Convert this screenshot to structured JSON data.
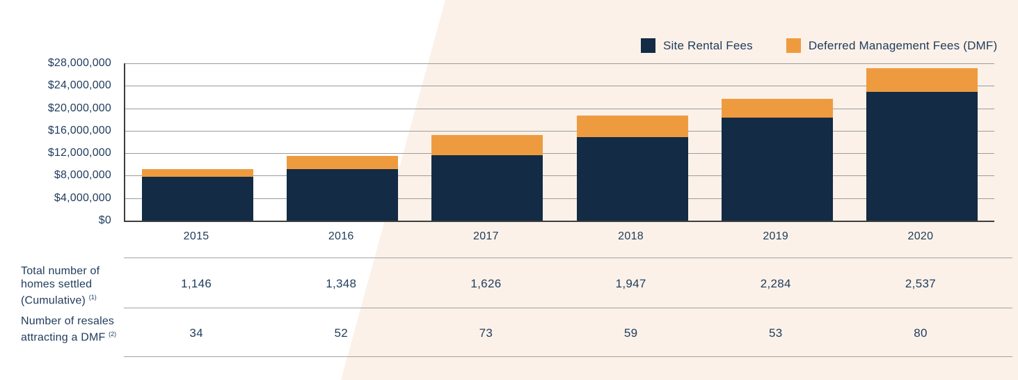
{
  "colors": {
    "text_navy": "#1E3B5C",
    "site_rental_navy": "#132B44",
    "dmf_orange": "#EE9B3F",
    "gridline_gray": "#9B9B9B",
    "axis_dark": "#3D3D3D",
    "divider_gray": "#A3A3A3",
    "background_cream": "#FBF1E8",
    "background_white": "#FFFFFF"
  },
  "chart_data": {
    "type": "bar",
    "stacked": true,
    "categories": [
      "2015",
      "2016",
      "2017",
      "2018",
      "2019",
      "2020"
    ],
    "series": [
      {
        "name": "Site Rental Fees",
        "color": "#132B44",
        "values": [
          7800000,
          9200000,
          11700000,
          14900000,
          18300000,
          22900000
        ]
      },
      {
        "name": "Deferred Management Fees (DMF)",
        "color": "#EE9B3F",
        "values": [
          1400000,
          2300000,
          3500000,
          3800000,
          3400000,
          4200000
        ]
      }
    ],
    "totals": [
      9200000,
      11500000,
      15200000,
      18700000,
      21700000,
      27100000
    ],
    "ylim": [
      0,
      28000000
    ],
    "y_tick_interval": 4000000,
    "y_tick_labels_top_to_bottom": [
      "$28,000,000",
      "$24,000,000",
      "$20,000,000",
      "$16,000,000",
      "$12,000,000",
      "$8,000,000",
      "$4,000,000",
      "$0"
    ],
    "grid": true,
    "legend_position": "top-right"
  },
  "table": {
    "rows": [
      {
        "label": "Total number of homes settled (Cumulative)",
        "footnote": "(1)",
        "values": [
          "1,146",
          "1,348",
          "1,626",
          "1,947",
          "2,284",
          "2,537"
        ]
      },
      {
        "label": "Number of resales attracting a DMF",
        "footnote": "(2)",
        "values": [
          "34",
          "52",
          "73",
          "59",
          "53",
          "80"
        ]
      }
    ]
  }
}
